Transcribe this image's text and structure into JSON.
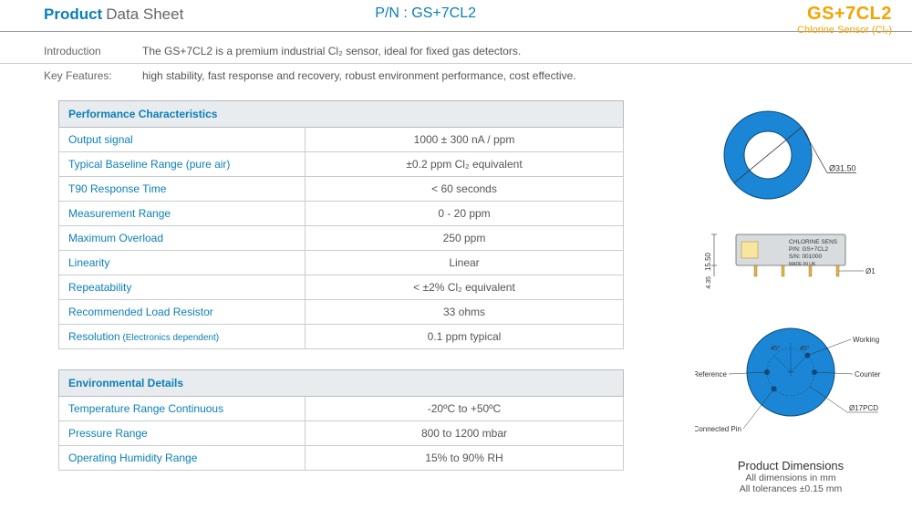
{
  "header": {
    "title_strong": "Product",
    "title_rest": "Data Sheet",
    "pn_label": "P/N : GS+7CL2",
    "brand_main": "GS+7CL2",
    "brand_sub": "Chlorine Sensor (Cl₂)"
  },
  "intro": {
    "rows": [
      {
        "label": "Introduction",
        "text": "The GS+7CL2 is a premium industrial Cl₂ sensor, ideal for fixed gas detectors."
      },
      {
        "label": "Key Features:",
        "text": "high stability, fast response and recovery, robust environment performance, cost effective."
      }
    ]
  },
  "tables": [
    {
      "title": "Performance Characteristics",
      "rows": [
        {
          "param": "Output signal",
          "val": "1000 ± 300 nA / ppm"
        },
        {
          "param": "Typical Baseline Range (pure air)",
          "val": "±0.2 ppm Cl₂ equivalent"
        },
        {
          "param": "T90 Response Time",
          "val": "< 60 seconds"
        },
        {
          "param": "Measurement Range",
          "val": "0 - 20 ppm"
        },
        {
          "param": "Maximum Overload",
          "val": "250 ppm"
        },
        {
          "param": "Linearity",
          "val": "Linear"
        },
        {
          "param": "Repeatability",
          "val": "< ±2% Cl₂ equivalent"
        },
        {
          "param": "Recommended Load Resistor",
          "val": "33 ohms"
        },
        {
          "param": "Resolution",
          "param_note": "(Electronics dependent)",
          "val": "0.1 ppm typical"
        }
      ]
    },
    {
      "title": "Environmental Details",
      "rows": [
        {
          "param": "Temperature Range Continuous",
          "val": "-20ºC to +50ºC"
        },
        {
          "param": "Pressure Range",
          "val": "800 to 1200 mbar"
        },
        {
          "param": "Operating Humidity Range",
          "val": "15% to 90% RH"
        }
      ]
    }
  ],
  "diagrams": {
    "title": "Product Dimensions",
    "sub1": "All dimensions in mm",
    "sub2": "All tolerances ±0.15 mm",
    "colors": {
      "ring_fill": "#1b86d6",
      "ring_stroke": "#0d4a7a",
      "body_fill": "#d8dcde",
      "pin_fill": "#e4b24a",
      "label_box": "#f7e6a0",
      "text": "#333333"
    },
    "top_view": {
      "outer_d_label": "Ø31.50",
      "outer_r": 48,
      "inner_r": 26
    },
    "side_view": {
      "height_label": "15.50",
      "pin_len_label": "4.35",
      "pin_d_label": "Ø1",
      "label_lines": [
        "CHLORINE SENS",
        "P/N: GS+7CL2",
        "S/N: 001000",
        "MADE IN UK."
      ]
    },
    "pin_view": {
      "labels": {
        "working": "Working",
        "counter": "Counter",
        "reference": "Reference",
        "nc": "Not Connected Pin"
      },
      "angle": "45°",
      "pcd_label": "Ø17PCD"
    }
  }
}
